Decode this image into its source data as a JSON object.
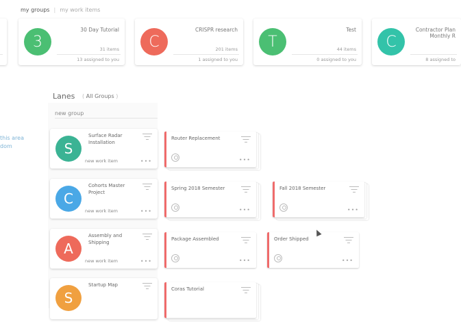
{
  "tabs": {
    "active": "my groups",
    "separator": "|",
    "inactive": "my work items"
  },
  "groups": [
    {
      "letter": "",
      "title": "",
      "items": "",
      "assigned": "",
      "color": "#f2f2f2"
    },
    {
      "letter": "3",
      "title": "30 Day Tutorial",
      "items": "31 items",
      "assigned": "13 assigned to you",
      "color": "#4bbf73"
    },
    {
      "letter": "C",
      "title": "CRISPR research",
      "items": "201 items",
      "assigned": "1 assigned to you",
      "color": "#ee6a5b"
    },
    {
      "letter": "T",
      "title": "Test",
      "items": "44 items",
      "assigned": "0 assigned to you",
      "color": "#4bbf73"
    },
    {
      "letter": "C",
      "title": "Contractor Plan Monthly R",
      "items": "",
      "assigned": "8 assigned to",
      "color": "#33c3a9"
    }
  ],
  "lanes_header": {
    "title": "Lanes",
    "filter": "All Groups",
    "bar_left": "(",
    "bar_right": ")"
  },
  "new_group": "new group",
  "left_note": [
    "this area",
    "dom"
  ],
  "lanes": [
    {
      "letter": "S",
      "title": "Surface Radar Installation",
      "new_item": "new work item",
      "color": "#3bb394",
      "items": [
        "Router Replacement"
      ]
    },
    {
      "letter": "C",
      "title": "Cohorts Master Project",
      "new_item": "new work item",
      "color": "#4aa8e6",
      "items": [
        "Spring 2018 Semester",
        "Fall 2018 Semester"
      ]
    },
    {
      "letter": "A",
      "title": "Assembly and Shipping",
      "new_item": "new work item",
      "color": "#ee6a5b",
      "items": [
        "Package Assembled",
        "Order Shipped"
      ]
    },
    {
      "letter": "S",
      "title": "Startup Map",
      "new_item": "",
      "color": "#f0a040",
      "items": [
        "Coras Tutorial"
      ]
    }
  ],
  "dots": "•••"
}
